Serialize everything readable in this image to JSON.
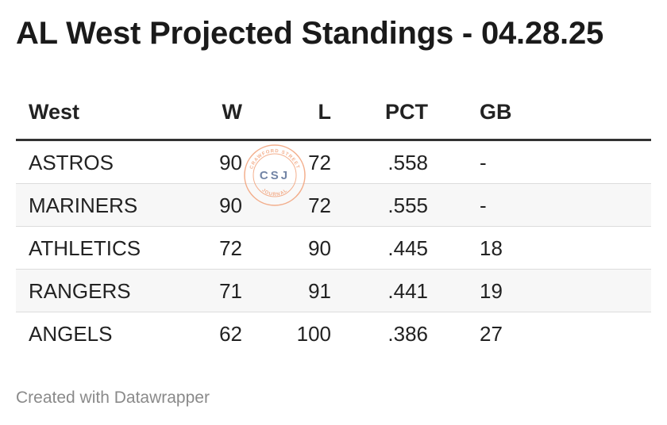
{
  "title": "AL West Projected Standings - 04.28.25",
  "footer": "Created with Datawrapper",
  "watermark": {
    "text": "CSJ",
    "ring_top": "CRAWFORD STREET",
    "ring_bottom": "JOURNAL",
    "color": "#f2a27a",
    "text_color": "#5a6f96"
  },
  "chart_data": {
    "type": "table",
    "columns": [
      "West",
      "W",
      "L",
      "PCT",
      "GB"
    ],
    "rows": [
      [
        "ASTROS",
        "90",
        "72",
        ".558",
        "-"
      ],
      [
        "MARINERS",
        "90",
        "72",
        ".555",
        "-"
      ],
      [
        "ATHLETICS",
        "72",
        "90",
        ".445",
        "18"
      ],
      [
        "RANGERS",
        "71",
        "91",
        ".441",
        "19"
      ],
      [
        "ANGELS",
        "62",
        "100",
        ".386",
        "27"
      ]
    ]
  }
}
